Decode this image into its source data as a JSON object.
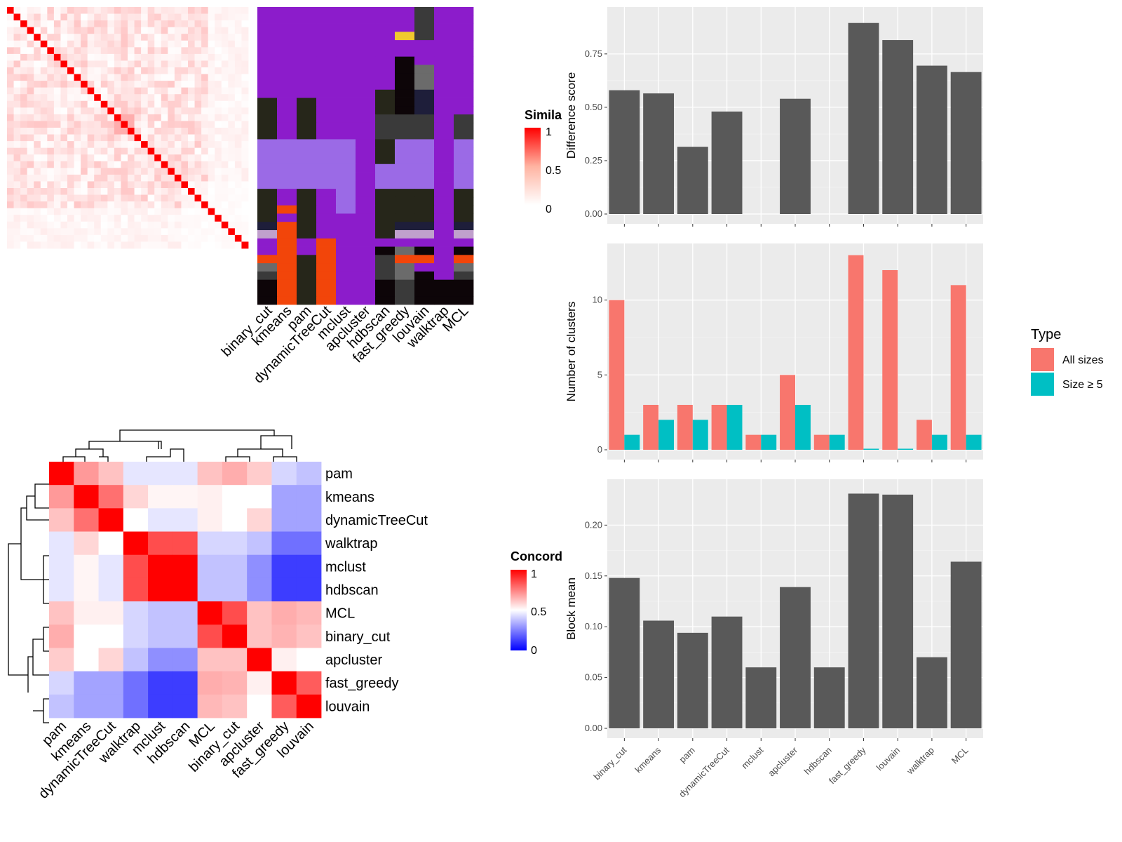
{
  "colors": {
    "panel_bg": "#ebebeb",
    "grid": "#ffffff",
    "bar_dark": "#595959",
    "all_sizes": "#f8766d",
    "size_ge5": "#00bfc4",
    "red": "#ff0000",
    "blue": "#0000ff",
    "white": "#ffffff"
  },
  "similarity_legend": {
    "title": "Simila",
    "ticks": [
      "1",
      "0.5",
      "0"
    ]
  },
  "concordance_legend": {
    "title": "Concord",
    "ticks": [
      "1",
      "0.5",
      "0"
    ]
  },
  "type_legend": {
    "title": "Type",
    "items": [
      "All sizes",
      "Size ≥ 5"
    ]
  },
  "chart_data": [
    {
      "id": "similarity_heatmap",
      "type": "heatmap",
      "legend_title": "Similarity",
      "matrix_size": 36,
      "diagonal": 1,
      "range": [
        0,
        1
      ]
    },
    {
      "id": "cluster_assignment_grid",
      "type": "heatmap",
      "columns": [
        "binary_cut",
        "kmeans",
        "pam",
        "dynamicTreeCut",
        "mclust",
        "apcluster",
        "hdbscan",
        "fast_greedy",
        "louvain",
        "walktrap",
        "MCL"
      ],
      "row_count": 36
    },
    {
      "id": "concordance_heatmap",
      "type": "heatmap",
      "legend_title": "Concordance",
      "rows": [
        "pam",
        "kmeans",
        "dynamicTreeCut",
        "walktrap",
        "mclust",
        "hdbscan",
        "MCL",
        "binary_cut",
        "apcluster",
        "fast_greedy",
        "louvain"
      ],
      "columns": [
        "pam",
        "kmeans",
        "dynamicTreeCut",
        "walktrap",
        "mclust",
        "hdbscan",
        "MCL",
        "binary_cut",
        "apcluster",
        "fast_greedy",
        "louvain"
      ],
      "values": [
        [
          1.0,
          0.7,
          0.62,
          0.45,
          0.45,
          0.45,
          0.62,
          0.66,
          0.6,
          0.42,
          0.38
        ],
        [
          0.7,
          1.0,
          0.78,
          0.58,
          0.52,
          0.52,
          0.53,
          0.5,
          0.5,
          0.32,
          0.32
        ],
        [
          0.62,
          0.78,
          1.0,
          0.5,
          0.45,
          0.45,
          0.53,
          0.5,
          0.58,
          0.32,
          0.32
        ],
        [
          0.45,
          0.58,
          0.5,
          1.0,
          0.85,
          0.85,
          0.42,
          0.42,
          0.38,
          0.22,
          0.22
        ],
        [
          0.45,
          0.52,
          0.45,
          0.85,
          1.0,
          1.0,
          0.38,
          0.38,
          0.28,
          0.12,
          0.12
        ],
        [
          0.45,
          0.52,
          0.45,
          0.85,
          1.0,
          1.0,
          0.38,
          0.38,
          0.28,
          0.12,
          0.12
        ],
        [
          0.62,
          0.53,
          0.53,
          0.42,
          0.38,
          0.38,
          1.0,
          0.85,
          0.62,
          0.66,
          0.64
        ],
        [
          0.66,
          0.5,
          0.5,
          0.42,
          0.38,
          0.38,
          0.85,
          1.0,
          0.62,
          0.65,
          0.62
        ],
        [
          0.6,
          0.5,
          0.58,
          0.38,
          0.28,
          0.28,
          0.62,
          0.62,
          1.0,
          0.53,
          0.5
        ],
        [
          0.42,
          0.32,
          0.32,
          0.22,
          0.12,
          0.12,
          0.66,
          0.65,
          0.53,
          1.0,
          0.82
        ],
        [
          0.38,
          0.32,
          0.32,
          0.22,
          0.12,
          0.12,
          0.64,
          0.62,
          0.5,
          0.82,
          1.0
        ]
      ],
      "range": [
        0,
        1
      ]
    },
    {
      "id": "difference_score",
      "type": "bar",
      "categories": [
        "binary_cut",
        "kmeans",
        "pam",
        "dynamicTreeCut",
        "mclust",
        "apcluster",
        "hdbscan",
        "fast_greedy",
        "louvain",
        "walktrap",
        "MCL"
      ],
      "values": [
        0.58,
        0.565,
        0.315,
        0.48,
        0,
        0.54,
        0,
        0.895,
        0.815,
        0.695,
        0.665
      ],
      "ylabel": "Difference score",
      "ylim": [
        0,
        0.95
      ],
      "yticks": [
        "0.00",
        "0.25",
        "0.50",
        "0.75"
      ]
    },
    {
      "id": "number_of_clusters",
      "type": "bar",
      "categories": [
        "binary_cut",
        "kmeans",
        "pam",
        "dynamicTreeCut",
        "mclust",
        "apcluster",
        "hdbscan",
        "fast_greedy",
        "louvain",
        "walktrap",
        "MCL"
      ],
      "series": [
        {
          "name": "All sizes",
          "values": [
            10,
            3,
            3,
            3,
            1,
            5,
            1,
            13,
            12,
            2,
            11
          ]
        },
        {
          "name": "Size ≥ 5",
          "values": [
            1,
            2,
            2,
            3,
            1,
            3,
            1,
            0,
            0,
            1,
            1
          ]
        }
      ],
      "ylabel": "Number of clusters",
      "ylim": [
        0,
        13.5
      ],
      "yticks": [
        "0",
        "5",
        "10"
      ]
    },
    {
      "id": "block_mean",
      "type": "bar",
      "categories": [
        "binary_cut",
        "kmeans",
        "pam",
        "dynamicTreeCut",
        "mclust",
        "apcluster",
        "hdbscan",
        "fast_greedy",
        "louvain",
        "walktrap",
        "MCL"
      ],
      "values": [
        0.148,
        0.106,
        0.094,
        0.11,
        0.06,
        0.139,
        0.06,
        0.231,
        0.23,
        0.07,
        0.164
      ],
      "ylabel": "Block mean",
      "ylim": [
        0,
        0.241
      ],
      "yticks": [
        "0.00",
        "0.05",
        "0.10",
        "0.15",
        "0.20"
      ]
    }
  ]
}
